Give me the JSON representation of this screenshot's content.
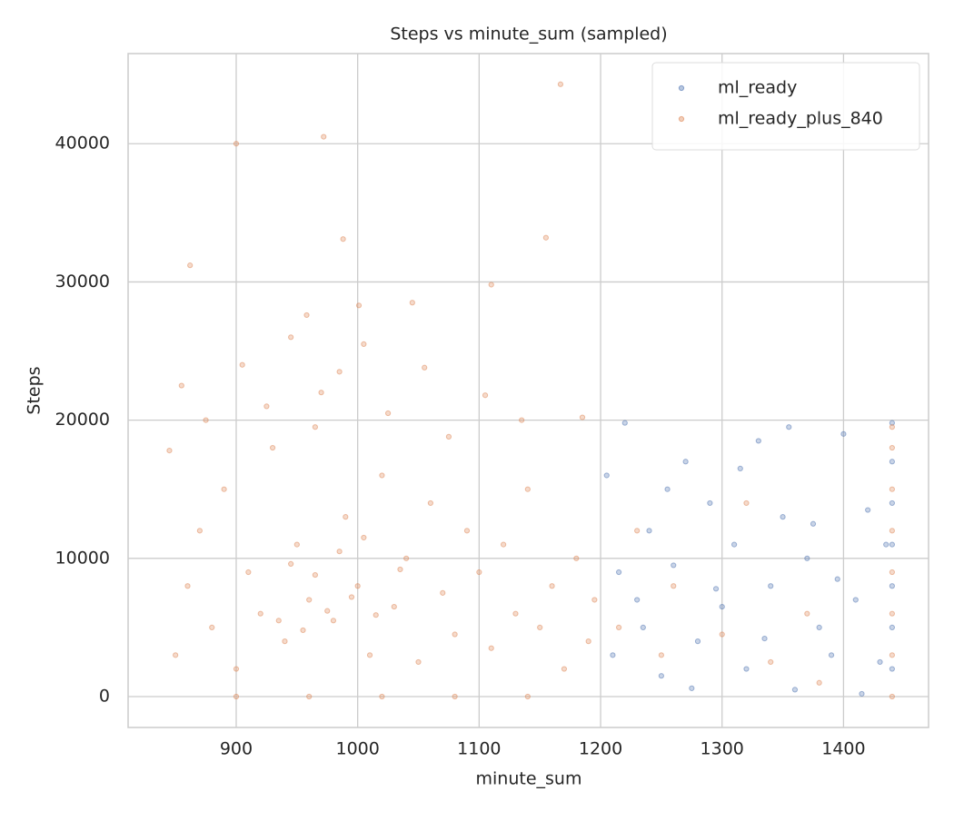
{
  "chart_data": {
    "type": "scatter",
    "title": "Steps vs minute_sum (sampled)",
    "x_label": "minute_sum",
    "y_label": "Steps",
    "xlim": [
      811,
      1470
    ],
    "ylim": [
      -2234,
      46520
    ],
    "xticks": [
      900,
      1000,
      1100,
      1200,
      1300,
      1400
    ],
    "yticks": [
      0,
      10000,
      20000,
      30000,
      40000
    ],
    "grid": true,
    "legend": "upper right",
    "series": [
      {
        "name": "ml_ready",
        "color": "#4c72b0",
        "x": [
          1205,
          1210,
          1220,
          1230,
          1240,
          1250,
          1260,
          1270,
          1280,
          1290,
          1300,
          1310,
          1320,
          1330,
          1340,
          1350,
          1360,
          1370,
          1380,
          1390,
          1400,
          1410,
          1420,
          1430,
          1215,
          1235,
          1255,
          1275,
          1295,
          1315,
          1335,
          1355,
          1375,
          1395,
          1415,
          1435,
          1440,
          1440,
          1440,
          1440,
          1440,
          1440,
          1440
        ],
        "values": [
          16000,
          3000,
          19800,
          7000,
          12000,
          1500,
          9500,
          17000,
          4000,
          14000,
          6500,
          11000,
          2000,
          18500,
          8000,
          13000,
          500,
          10000,
          5000,
          3000,
          19000,
          7000,
          13500,
          2500,
          9000,
          5000,
          15000,
          600,
          7800,
          16500,
          4200,
          19500,
          12500,
          8500,
          200,
          11000,
          2000,
          5000,
          8000,
          11000,
          14000,
          17000,
          19800
        ]
      },
      {
        "name": "ml_ready_plus_840",
        "color": "#dd8452",
        "x": [
          845,
          850,
          860,
          870,
          880,
          890,
          900,
          910,
          920,
          930,
          940,
          950,
          960,
          970,
          980,
          990,
          1000,
          1010,
          1020,
          1030,
          1040,
          1050,
          1060,
          1070,
          1080,
          1090,
          1100,
          1110,
          1120,
          1130,
          1140,
          1150,
          1160,
          1170,
          1180,
          1190,
          1195,
          855,
          875,
          905,
          925,
          945,
          965,
          985,
          1005,
          1025,
          1055,
          1075,
          1105,
          1135,
          1185,
          900,
          960,
          1020,
          1080,
          1140,
          935,
          955,
          975,
          995,
          1015,
          965,
          945,
          985,
          1005,
          1035,
          1215,
          1250,
          1300,
          1340,
          1370,
          1260,
          1230,
          1320,
          1380,
          1440,
          1440,
          1440,
          1440,
          1440,
          1440,
          1440,
          1440,
          862,
          900,
          972,
          1167,
          988,
          1155,
          1110,
          1045,
          958,
          1001
        ],
        "values": [
          17800,
          3000,
          8000,
          12000,
          5000,
          15000,
          2000,
          9000,
          6000,
          18000,
          4000,
          11000,
          7000,
          22000,
          5500,
          13000,
          8000,
          3000,
          16000,
          6500,
          10000,
          2500,
          14000,
          7500,
          4500,
          12000,
          9000,
          3500,
          11000,
          6000,
          15000,
          5000,
          8000,
          2000,
          10000,
          4000,
          7000,
          22500,
          20000,
          24000,
          21000,
          26000,
          19500,
          23500,
          25500,
          20500,
          23800,
          18800,
          21800,
          20000,
          20200,
          0,
          0,
          0,
          0,
          0,
          5500,
          4800,
          6200,
          7200,
          5900,
          8800,
          9600,
          10500,
          11500,
          9200,
          5000,
          3000,
          4500,
          2500,
          6000,
          8000,
          12000,
          14000,
          1000,
          0,
          3000,
          6000,
          9000,
          12000,
          15000,
          18000,
          19500,
          31200,
          40000,
          40500,
          44300,
          33100,
          33200,
          29800,
          28500,
          27600,
          28300
        ]
      }
    ]
  }
}
